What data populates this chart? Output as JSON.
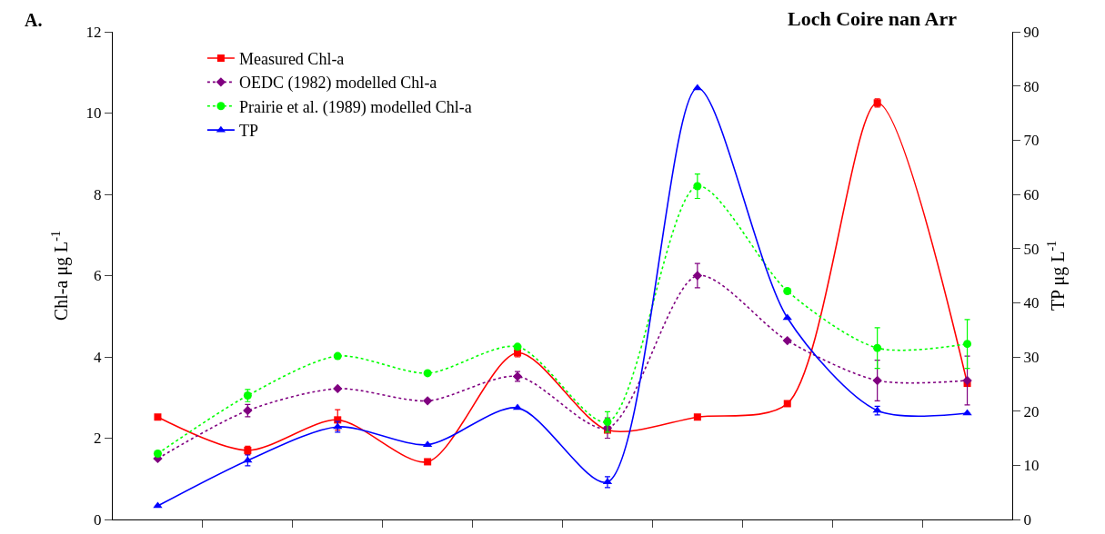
{
  "chart_data": {
    "type": "line",
    "title": "Loch Coire nan Arr",
    "annotations": [
      "A."
    ],
    "ylabel": "Chl-a μg L$^{-1}$",
    "y2label": "TP μg L$^{-1}$",
    "categories": [
      null,
      null,
      null,
      null,
      null,
      null,
      null,
      null,
      null,
      null
    ],
    "ylim": [
      0,
      12
    ],
    "yticks": [
      0,
      2,
      4,
      6,
      8,
      10,
      12
    ],
    "y2lim": [
      0,
      90
    ],
    "y2ticks": [
      0,
      10,
      20,
      30,
      40,
      50,
      60,
      70,
      80,
      90
    ],
    "tick_labels": "y",
    "legend": "top left",
    "series": [
      {
        "name": "Measured Chl-a",
        "color": "#ff0000",
        "marker": "square",
        "line_style": "solid",
        "values": [
          2.52,
          1.7,
          2.45,
          1.42,
          4.1,
          2.2,
          2.52,
          2.85,
          10.25,
          3.35
        ],
        "errors": [
          null,
          0.1,
          0.25,
          null,
          0.1,
          null,
          null,
          null,
          0.1,
          null
        ]
      },
      {
        "name": "OEDC (1982) modelled Chl-a",
        "color": "#800080",
        "marker": "diamond",
        "line_style": "dotted",
        "values": [
          1.5,
          2.68,
          3.22,
          2.92,
          3.52,
          2.25,
          6.0,
          4.4,
          3.42,
          3.42
        ],
        "errors": [
          null,
          0.15,
          null,
          null,
          0.12,
          0.25,
          0.3,
          null,
          0.5,
          0.6
        ]
      },
      {
        "name": "Prairie et al. (1989) modelled Chl-a",
        "color": "#00ff00",
        "marker": "circle",
        "line_style": "dotted",
        "values": [
          1.62,
          3.05,
          4.02,
          3.6,
          4.25,
          2.4,
          8.2,
          5.62,
          4.22,
          4.32
        ],
        "errors": [
          null,
          0.15,
          null,
          null,
          null,
          0.25,
          0.3,
          null,
          0.5,
          0.6
        ]
      },
      {
        "name": "TP",
        "color": "#0000ff",
        "marker": "triangle",
        "line_style": "solid",
        "axis": "y2",
        "values": [
          2.5,
          10.9,
          17.1,
          13.8,
          20.6,
          6.9,
          79.6,
          37.2,
          20.1,
          19.6
        ],
        "errors": [
          null,
          1.0,
          1.0,
          null,
          null,
          1.0,
          null,
          null,
          0.8,
          null
        ]
      }
    ]
  }
}
